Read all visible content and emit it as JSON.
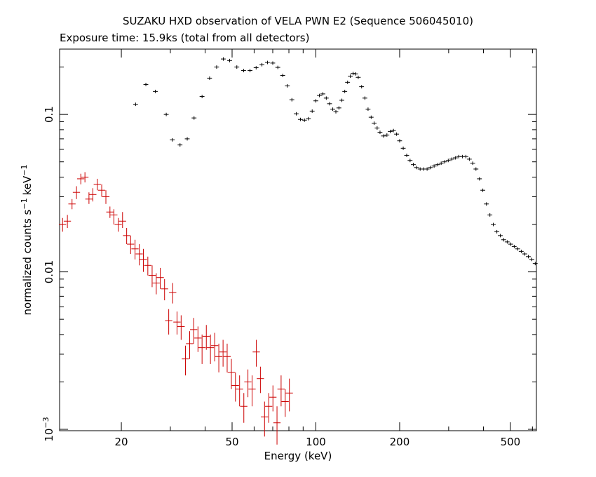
{
  "chart_data": {
    "type": "scatter",
    "title": "SUZAKU HXD observation of VELA PWN E2 (Sequence 506045010)",
    "subtitle": "Exposure time: 15.9ks (total from all detectors)",
    "xlabel": "Energy (keV)",
    "ylabel": "normalized counts s",
    "ylabel_sup1": "−1",
    "ylabel_unit": "keV",
    "ylabel_sup2": "−1",
    "x_scale": "log",
    "y_scale": "log",
    "xlim": [
      12,
      620
    ],
    "ylim": [
      0.00098,
      0.26
    ],
    "x_ticks": [
      {
        "value": 20,
        "label": "20"
      },
      {
        "value": 50,
        "label": "50"
      },
      {
        "value": 100,
        "label": "100"
      },
      {
        "value": 200,
        "label": "200"
      },
      {
        "value": 500,
        "label": "500"
      }
    ],
    "y_ticks": [
      {
        "value": 0.1,
        "label": "0.1"
      },
      {
        "value": 0.01,
        "label": "0.01"
      },
      {
        "value": 0.001,
        "label": "10",
        "sup": "−3"
      }
    ],
    "grid": false,
    "legend": "none",
    "series": [
      {
        "color": "#000000",
        "x_err_frac": 0.02,
        "points": [
          [
            22.5,
            0.116
          ],
          [
            24.5,
            0.155
          ],
          [
            26.5,
            0.14
          ],
          [
            29,
            0.1
          ],
          [
            30.5,
            0.069
          ],
          [
            32.5,
            0.064
          ],
          [
            34.5,
            0.07
          ],
          [
            36.5,
            0.095
          ],
          [
            39,
            0.13
          ],
          [
            41.5,
            0.17
          ],
          [
            44,
            0.2
          ],
          [
            46.5,
            0.225
          ],
          [
            49,
            0.22
          ],
          [
            52,
            0.2
          ],
          [
            55,
            0.19
          ],
          [
            58,
            0.19
          ],
          [
            61,
            0.198
          ],
          [
            64,
            0.207
          ],
          [
            67,
            0.214
          ],
          [
            70,
            0.212
          ],
          [
            73,
            0.199
          ],
          [
            76,
            0.177
          ],
          [
            79,
            0.152
          ],
          [
            82,
            0.124
          ],
          [
            85,
            0.101
          ],
          [
            88,
            0.093
          ],
          [
            91,
            0.092
          ],
          [
            94,
            0.094
          ],
          [
            97,
            0.105
          ],
          [
            100,
            0.122
          ],
          [
            103,
            0.132
          ],
          [
            106,
            0.135
          ],
          [
            109,
            0.127
          ],
          [
            112,
            0.117
          ],
          [
            115,
            0.108
          ],
          [
            118,
            0.104
          ],
          [
            121,
            0.11
          ],
          [
            124,
            0.123
          ],
          [
            127,
            0.14
          ],
          [
            130,
            0.16
          ],
          [
            133,
            0.175
          ],
          [
            136,
            0.182
          ],
          [
            139,
            0.181
          ],
          [
            142,
            0.172
          ],
          [
            146,
            0.15
          ],
          [
            150,
            0.127
          ],
          [
            154,
            0.108
          ],
          [
            158,
            0.096
          ],
          [
            162,
            0.088
          ],
          [
            166,
            0.082
          ],
          [
            170,
            0.077
          ],
          [
            175,
            0.073
          ],
          [
            180,
            0.074
          ],
          [
            185,
            0.078
          ],
          [
            190,
            0.079
          ],
          [
            195,
            0.075
          ],
          [
            200,
            0.068
          ],
          [
            206,
            0.061
          ],
          [
            212,
            0.055
          ],
          [
            218,
            0.051
          ],
          [
            224,
            0.048
          ],
          [
            230,
            0.046
          ],
          [
            237,
            0.045
          ],
          [
            244,
            0.045
          ],
          [
            251,
            0.045
          ],
          [
            258,
            0.046
          ],
          [
            266,
            0.047
          ],
          [
            274,
            0.048
          ],
          [
            282,
            0.049
          ],
          [
            290,
            0.05
          ],
          [
            299,
            0.051
          ],
          [
            308,
            0.052
          ],
          [
            317,
            0.053
          ],
          [
            326,
            0.054
          ],
          [
            336,
            0.054
          ],
          [
            346,
            0.054
          ],
          [
            356,
            0.052
          ],
          [
            366,
            0.049
          ],
          [
            376,
            0.045
          ],
          [
            387,
            0.039
          ],
          [
            398,
            0.033
          ],
          [
            410,
            0.027
          ],
          [
            422,
            0.023
          ],
          [
            434,
            0.02
          ],
          [
            447,
            0.018
          ],
          [
            460,
            0.017
          ],
          [
            473,
            0.016
          ],
          [
            487,
            0.0155
          ],
          [
            501,
            0.015
          ],
          [
            516,
            0.0145
          ],
          [
            531,
            0.014
          ],
          [
            547,
            0.0135
          ],
          [
            563,
            0.013
          ],
          [
            580,
            0.0125
          ],
          [
            597,
            0.012
          ],
          [
            614,
            0.0113
          ]
        ]
      },
      {
        "color": "#cc0000",
        "x_err_frac": 0.03,
        "points": [
          [
            12.3,
            0.02,
            0.018,
            0.022
          ],
          [
            12.8,
            0.021,
            0.019,
            0.023
          ],
          [
            13.3,
            0.027,
            0.025,
            0.029
          ],
          [
            13.8,
            0.032,
            0.029,
            0.035
          ],
          [
            14.3,
            0.039,
            0.036,
            0.042
          ],
          [
            14.8,
            0.04,
            0.037,
            0.043
          ],
          [
            15.3,
            0.029,
            0.027,
            0.032
          ],
          [
            15.8,
            0.031,
            0.028,
            0.034
          ],
          [
            16.4,
            0.036,
            0.033,
            0.039
          ],
          [
            17,
            0.033,
            0.03,
            0.036
          ],
          [
            17.6,
            0.03,
            0.027,
            0.033
          ],
          [
            18.2,
            0.024,
            0.022,
            0.026
          ],
          [
            18.8,
            0.023,
            0.02,
            0.025
          ],
          [
            19.5,
            0.02,
            0.018,
            0.022
          ],
          [
            20.2,
            0.021,
            0.019,
            0.024
          ],
          [
            20.9,
            0.017,
            0.015,
            0.019
          ],
          [
            21.6,
            0.015,
            0.013,
            0.017
          ],
          [
            22.4,
            0.014,
            0.012,
            0.016
          ],
          [
            23.2,
            0.013,
            0.011,
            0.015
          ],
          [
            24,
            0.012,
            0.01,
            0.014
          ],
          [
            24.9,
            0.011,
            0.0095,
            0.0125
          ],
          [
            25.8,
            0.0095,
            0.008,
            0.011
          ],
          [
            26.7,
            0.0085,
            0.0072,
            0.0098
          ],
          [
            27.6,
            0.0092,
            0.0078,
            0.0106
          ],
          [
            28.6,
            0.0078,
            0.0066,
            0.009
          ],
          [
            29.6,
            0.0049,
            0.004,
            0.0058
          ],
          [
            30.6,
            0.0074,
            0.0063,
            0.0085
          ],
          [
            31.7,
            0.0048,
            0.004,
            0.0056
          ],
          [
            32.8,
            0.0045,
            0.0037,
            0.0053
          ],
          [
            34,
            0.0028,
            0.0022,
            0.0034
          ],
          [
            35.2,
            0.0035,
            0.0028,
            0.0042
          ],
          [
            36.4,
            0.0043,
            0.0035,
            0.0051
          ],
          [
            37.7,
            0.0038,
            0.0031,
            0.0045
          ],
          [
            39,
            0.0033,
            0.0026,
            0.004
          ],
          [
            40.4,
            0.0039,
            0.0032,
            0.0046
          ],
          [
            41.8,
            0.0033,
            0.0026,
            0.004
          ],
          [
            43.3,
            0.0034,
            0.0027,
            0.0041
          ],
          [
            44.8,
            0.0029,
            0.0023,
            0.0035
          ],
          [
            46.4,
            0.0031,
            0.0025,
            0.0037
          ],
          [
            48,
            0.0029,
            0.0023,
            0.0035
          ],
          [
            49.7,
            0.0023,
            0.0018,
            0.0028
          ],
          [
            51.4,
            0.0019,
            0.0015,
            0.0023
          ],
          [
            53.2,
            0.0018,
            0.0014,
            0.0022
          ],
          [
            55.1,
            0.0014,
            0.0011,
            0.0017
          ],
          [
            57,
            0.002,
            0.0016,
            0.0024
          ],
          [
            59,
            0.0018,
            0.0014,
            0.0022
          ],
          [
            61.1,
            0.0031,
            0.0025,
            0.0037
          ],
          [
            63.2,
            0.0021,
            0.0017,
            0.0025
          ],
          [
            65.4,
            0.0012,
            0.0009,
            0.0015
          ],
          [
            67.7,
            0.0014,
            0.0011,
            0.0017
          ],
          [
            70.1,
            0.0016,
            0.0013,
            0.0019
          ],
          [
            72.5,
            0.0011,
            0.0008,
            0.0014
          ],
          [
            75,
            0.0018,
            0.0014,
            0.0022
          ],
          [
            77.6,
            0.0015,
            0.0012,
            0.0018
          ],
          [
            80.3,
            0.0017,
            0.0013,
            0.0021
          ]
        ]
      }
    ]
  }
}
